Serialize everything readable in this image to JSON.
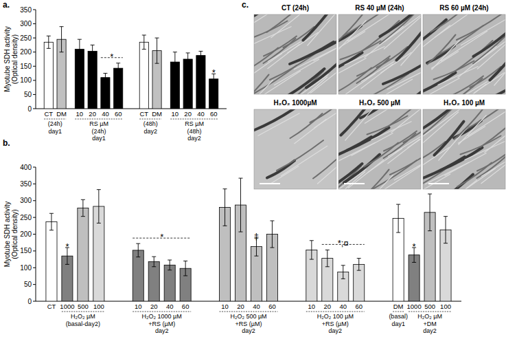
{
  "chart_data": [
    {
      "type": "bar",
      "title": "a.",
      "ylabel": [
        "Myotube SDH activity",
        "(Optical density)"
      ],
      "ylim": [
        0,
        350
      ],
      "yticks": [
        0,
        50,
        100,
        150,
        200,
        250,
        300,
        350
      ],
      "groups": [
        {
          "categories": [
            "CT",
            "DM"
          ],
          "values": [
            235,
            245
          ],
          "errors": [
            22,
            45
          ],
          "colors": [
            "#ffffff",
            "#c0c0c0"
          ],
          "labels": [
            "(24h)",
            "day1"
          ]
        },
        {
          "categories": [
            "10",
            "20",
            "40",
            "60"
          ],
          "values": [
            210,
            203,
            110,
            143
          ],
          "errors": [
            35,
            22,
            15,
            18
          ],
          "colors": [
            "#000000",
            "#000000",
            "#000000",
            "#000000"
          ],
          "labels": [
            "RS µM",
            "(24h)",
            "day1"
          ]
        },
        {
          "categories": [
            "CT",
            "DM"
          ],
          "values": [
            235,
            205
          ],
          "errors": [
            25,
            45
          ],
          "colors": [
            "#ffffff",
            "#c0c0c0"
          ],
          "labels": [
            "(48h)",
            "day2"
          ]
        },
        {
          "categories": [
            "10",
            "20",
            "40",
            "60"
          ],
          "values": [
            165,
            175,
            188,
            105
          ],
          "errors": [
            35,
            22,
            15,
            18
          ],
          "colors": [
            "#000000",
            "#000000",
            "#000000",
            "#000000"
          ],
          "labels": [
            "RS µM",
            "(48h)",
            "day2"
          ]
        }
      ],
      "annotations": [
        {
          "text": "*",
          "group": 1,
          "from": 2,
          "to": 3,
          "line_style": "dashed"
        },
        {
          "text": "*",
          "group": 3,
          "from": 3,
          "to": 3
        }
      ]
    },
    {
      "type": "bar",
      "title": "b.",
      "ylabel": [
        "Myotube SDH activity",
        "(Optical density)"
      ],
      "ylim": [
        0,
        400
      ],
      "yticks": [
        0,
        50,
        100,
        150,
        200,
        250,
        300,
        350,
        400
      ],
      "groups": [
        {
          "categories": [
            "CT"
          ],
          "values": [
            237
          ],
          "errors": [
            25
          ],
          "colors": [
            "#ffffff"
          ]
        },
        {
          "categories": [
            "1000",
            "500",
            "100"
          ],
          "values": [
            135,
            278,
            283
          ],
          "errors": [
            25,
            25,
            50
          ],
          "colors": [
            "#808080",
            "#bfbfbf",
            "#d9d9d9"
          ],
          "labels": [
            "H₂O₂ µM",
            "(basal-day2)"
          ]
        },
        {
          "categories": [
            "10",
            "20",
            "40",
            "60"
          ],
          "values": [
            152,
            118,
            108,
            98
          ],
          "errors": [
            20,
            15,
            15,
            22
          ],
          "colors": [
            "#808080",
            "#808080",
            "#808080",
            "#808080"
          ],
          "labels": [
            "H₂O₂ 1000 µM",
            "+RS (µM)",
            "day2"
          ]
        },
        {
          "categories": [
            "10",
            "20",
            "40",
            "60"
          ],
          "values": [
            280,
            287,
            163,
            200
          ],
          "errors": [
            55,
            80,
            28,
            40
          ],
          "colors": [
            "#bfbfbf",
            "#bfbfbf",
            "#bfbfbf",
            "#bfbfbf"
          ],
          "labels": [
            "H₂O₂ 500 µM",
            "+RS (µM)",
            "day2"
          ]
        },
        {
          "categories": [
            "10",
            "20",
            "40",
            "60"
          ],
          "values": [
            153,
            128,
            87,
            110
          ],
          "errors": [
            28,
            25,
            20,
            18
          ],
          "colors": [
            "#d9d9d9",
            "#d9d9d9",
            "#d9d9d9",
            "#d9d9d9"
          ],
          "labels": [
            "H₂O₂ 100 µM",
            "+RS (µM)",
            "day2"
          ]
        },
        {
          "categories": [
            "DM"
          ],
          "values": [
            247
          ],
          "errors": [
            42
          ],
          "colors": [
            "#ffffff"
          ],
          "labels": [
            "(basal)",
            "day1"
          ]
        },
        {
          "categories": [
            "1000",
            "500",
            "100"
          ],
          "values": [
            138,
            265,
            213
          ],
          "errors": [
            22,
            55,
            40
          ],
          "colors": [
            "#808080",
            "#bfbfbf",
            "#d9d9d9"
          ],
          "labels": [
            "H₂O₂ µM",
            "+DM",
            "day2"
          ]
        }
      ],
      "annotations": [
        {
          "text": "*",
          "group": 1,
          "from": 0,
          "to": 0
        },
        {
          "text": "*",
          "group": 2,
          "from": 0,
          "to": 3,
          "line_style": "dashed"
        },
        {
          "text": "‡",
          "group": 3,
          "from": 2,
          "to": 2
        },
        {
          "text": "*;¤",
          "group": 4,
          "from": 1,
          "to": 3,
          "line_style": "dashed"
        },
        {
          "text": "*",
          "group": 6,
          "from": 0,
          "to": 0
        }
      ]
    }
  ],
  "panel_c": {
    "title": "c.",
    "images": [
      "CT (24h)",
      "RS 40 µM (24h)",
      "RS 60 µM (24h)",
      "H₂O₂ 1000µM",
      "H₂O₂ 500 µM",
      "H₂O₂ 100 µM"
    ]
  }
}
